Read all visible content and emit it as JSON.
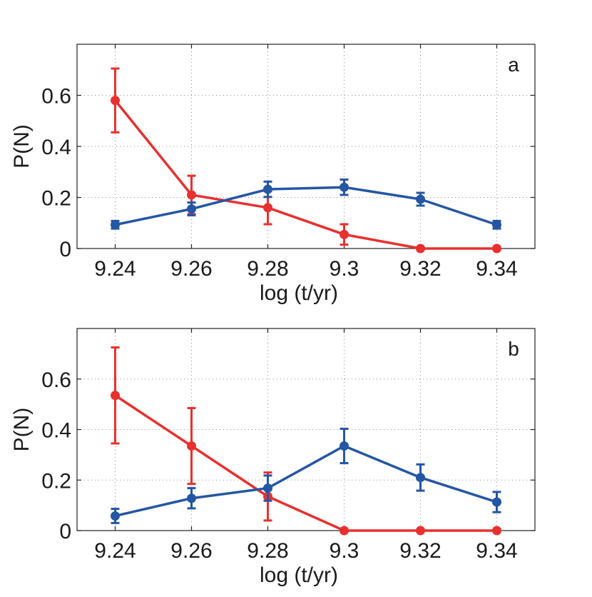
{
  "chart_data": [
    {
      "type": "line",
      "panel_label": "a",
      "xlabel": "log (t/yr)",
      "ylabel": "P(N)",
      "x": [
        9.24,
        9.26,
        9.28,
        9.3,
        9.32,
        9.34
      ],
      "x_tick_labels": [
        "9.24",
        "9.26",
        "9.28",
        "9.3",
        "9.32",
        "9.34"
      ],
      "y_ticks": [
        0,
        0.2,
        0.4,
        0.6
      ],
      "y_tick_labels": [
        "0",
        "0.2",
        "0.4",
        "0.6"
      ],
      "xlim": [
        9.23,
        9.35
      ],
      "ylim": [
        0,
        0.8
      ],
      "grid": true,
      "series": [
        {
          "color": "#e8302e",
          "values": [
            0.58,
            0.21,
            0.16,
            0.055,
            0.0,
            0.0
          ],
          "errors": [
            0.125,
            0.075,
            0.065,
            0.04,
            0.0,
            0.0
          ]
        },
        {
          "color": "#2456a4",
          "values": [
            0.093,
            0.155,
            0.232,
            0.24,
            0.193,
            0.093
          ],
          "errors": [
            0.015,
            0.025,
            0.03,
            0.03,
            0.025,
            0.015
          ]
        }
      ]
    },
    {
      "type": "line",
      "panel_label": "b",
      "xlabel": "log (t/yr)",
      "ylabel": "P(N)",
      "x": [
        9.24,
        9.26,
        9.28,
        9.3,
        9.32,
        9.34
      ],
      "x_tick_labels": [
        "9.24",
        "9.26",
        "9.28",
        "9.3",
        "9.32",
        "9.34"
      ],
      "y_ticks": [
        0,
        0.2,
        0.4,
        0.6
      ],
      "y_tick_labels": [
        "0",
        "0.2",
        "0.4",
        "0.6"
      ],
      "xlim": [
        9.23,
        9.35
      ],
      "ylim": [
        0,
        0.8
      ],
      "grid": true,
      "series": [
        {
          "color": "#e8302e",
          "values": [
            0.535,
            0.335,
            0.135,
            0.0,
            0.0,
            0.0
          ],
          "errors": [
            0.19,
            0.15,
            0.095,
            0.0,
            0.0,
            0.0
          ]
        },
        {
          "color": "#2456a4",
          "values": [
            0.058,
            0.128,
            0.168,
            0.335,
            0.21,
            0.113
          ],
          "errors": [
            0.028,
            0.04,
            0.05,
            0.068,
            0.052,
            0.04
          ]
        }
      ]
    }
  ]
}
